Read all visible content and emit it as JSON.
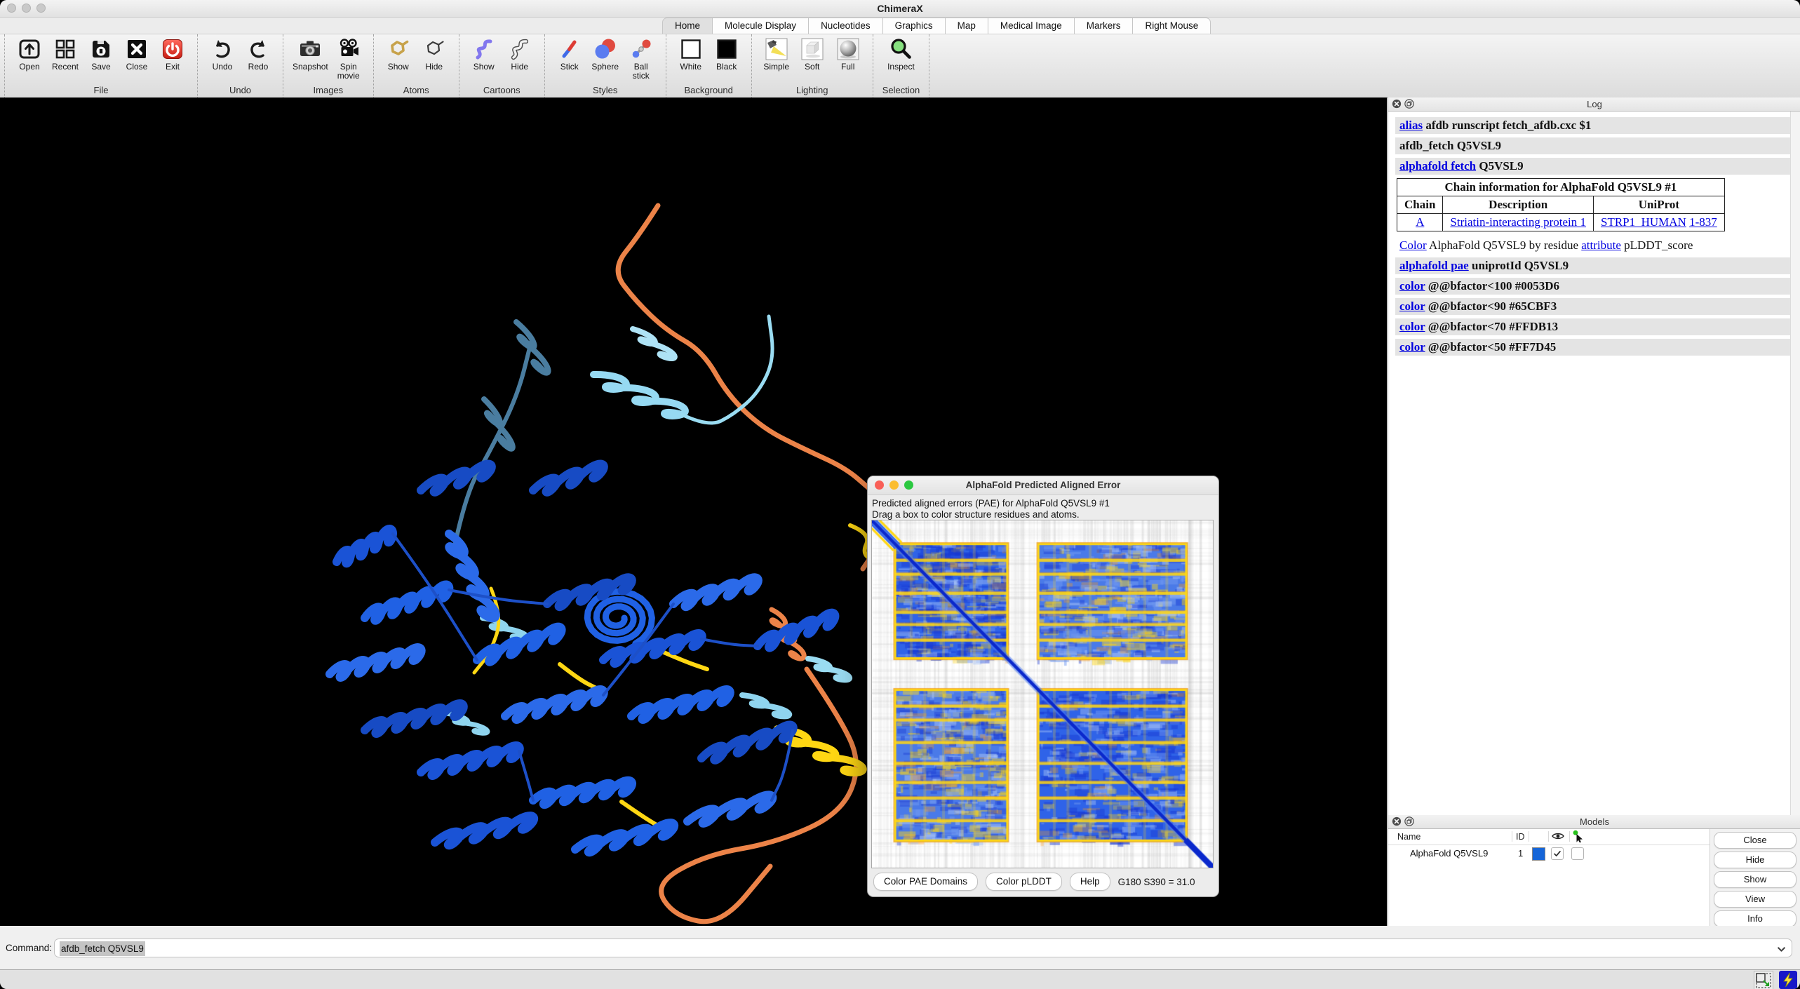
{
  "window": {
    "title": "ChimeraX"
  },
  "tabs": {
    "items": [
      {
        "label": "Home",
        "active": true
      },
      {
        "label": "Molecule Display",
        "active": false
      },
      {
        "label": "Nucleotides",
        "active": false
      },
      {
        "label": "Graphics",
        "active": false
      },
      {
        "label": "Map",
        "active": false
      },
      {
        "label": "Medical Image",
        "active": false
      },
      {
        "label": "Markers",
        "active": false
      },
      {
        "label": "Right Mouse",
        "active": false
      }
    ]
  },
  "toolbar": {
    "groups": [
      {
        "label": "File",
        "items": [
          {
            "label": "Open",
            "icon": "open"
          },
          {
            "label": "Recent",
            "icon": "recent"
          },
          {
            "label": "Save",
            "icon": "save"
          },
          {
            "label": "Close",
            "icon": "close"
          },
          {
            "label": "Exit",
            "icon": "exit"
          }
        ]
      },
      {
        "label": "Undo",
        "items": [
          {
            "label": "Undo",
            "icon": "undo"
          },
          {
            "label": "Redo",
            "icon": "redo"
          }
        ]
      },
      {
        "label": "Images",
        "items": [
          {
            "label": "Snapshot",
            "icon": "snapshot"
          },
          {
            "label": "Spin\nmovie",
            "icon": "spin-movie"
          }
        ]
      },
      {
        "label": "Atoms",
        "items": [
          {
            "label": "Show",
            "icon": "atoms-show"
          },
          {
            "label": "Hide",
            "icon": "atoms-hide"
          }
        ]
      },
      {
        "label": "Cartoons",
        "items": [
          {
            "label": "Show",
            "icon": "cartoons-show"
          },
          {
            "label": "Hide",
            "icon": "cartoons-hide"
          }
        ]
      },
      {
        "label": "Styles",
        "items": [
          {
            "label": "Stick",
            "icon": "stick"
          },
          {
            "label": "Sphere",
            "icon": "sphere"
          },
          {
            "label": "Ball\nstick",
            "icon": "ball-stick"
          }
        ]
      },
      {
        "label": "Background",
        "items": [
          {
            "label": "White",
            "icon": "white"
          },
          {
            "label": "Black",
            "icon": "black"
          }
        ]
      },
      {
        "label": "Lighting",
        "items": [
          {
            "label": "Simple",
            "icon": "simple"
          },
          {
            "label": "Soft",
            "icon": "soft"
          },
          {
            "label": "Full",
            "icon": "full"
          }
        ]
      },
      {
        "label": "Selection",
        "items": [
          {
            "label": "Inspect",
            "icon": "inspect"
          }
        ]
      }
    ]
  },
  "log": {
    "title": "Log",
    "entries": [
      {
        "type": "command",
        "segments": [
          {
            "text": "alias",
            "link": true
          },
          {
            "text": " afdb runscript fetch_afdb.cxc $1"
          }
        ]
      },
      {
        "type": "command",
        "segments": [
          {
            "text": "afdb_fetch Q5VSL9"
          }
        ]
      },
      {
        "type": "command",
        "segments": [
          {
            "text": "alphafold fetch",
            "link": true
          },
          {
            "text": " Q5VSL9"
          }
        ]
      },
      {
        "type": "table",
        "caption": "Chain information for AlphaFold Q5VSL9 #1",
        "headers": [
          "Chain",
          "Description",
          "UniProt"
        ],
        "rows": [
          [
            [
              {
                "text": "A",
                "link": true
              }
            ],
            [
              {
                "text": "Striatin-interacting protein 1",
                "link": true
              }
            ],
            [
              {
                "text": "STRP1_HUMAN",
                "link": true
              },
              {
                "text": " "
              },
              {
                "text": "1-837",
                "link": true
              }
            ]
          ]
        ]
      },
      {
        "type": "info",
        "segments": [
          {
            "text": "Color",
            "link": true
          },
          {
            "text": " AlphaFold Q5VSL9 by residue "
          },
          {
            "text": "attribute",
            "link": true
          },
          {
            "text": " pLDDT_score"
          }
        ]
      },
      {
        "type": "command",
        "segments": [
          {
            "text": "alphafold pae",
            "link": true
          },
          {
            "text": " uniprotId Q5VSL9"
          }
        ]
      },
      {
        "type": "command",
        "segments": [
          {
            "text": "color",
            "link": true
          },
          {
            "text": " @@bfactor<100 #0053D6"
          }
        ]
      },
      {
        "type": "command",
        "segments": [
          {
            "text": "color",
            "link": true
          },
          {
            "text": " @@bfactor<90 #65CBF3"
          }
        ]
      },
      {
        "type": "command",
        "segments": [
          {
            "text": "color",
            "link": true
          },
          {
            "text": " @@bfactor<70 #FFDB13"
          }
        ]
      },
      {
        "type": "command",
        "segments": [
          {
            "text": "color",
            "link": true
          },
          {
            "text": " @@bfactor<50 #FF7D45"
          }
        ]
      }
    ]
  },
  "pae": {
    "title": "AlphaFold Predicted Aligned Error",
    "line1": "Predicted aligned errors (PAE) for AlphaFold Q5VSL9 #1",
    "line2": "Drag a box to color structure residues and atoms.",
    "buttons": [
      "Color PAE Domains",
      "Color pLDDT",
      "Help"
    ],
    "status": "G180 S390 = 31.0"
  },
  "chart_data": {
    "type": "heatmap",
    "title": "Predicted aligned errors (PAE) for AlphaFold Q5VSL9 #1",
    "x_range": [
      1,
      837
    ],
    "y_range": [
      1,
      837
    ],
    "colormap": "low error = dark blue, domain boundaries = yellow/orange, high error = white/gray",
    "diagonal": "dark blue low-error diagonal from top-left to bottom-right",
    "domains_estimated_residues": [
      [
        55,
        335
      ],
      [
        405,
        775
      ]
    ],
    "readout": "G180 S390 = 31.0"
  },
  "models": {
    "title": "Models",
    "columns": {
      "name": "Name",
      "id": "ID"
    },
    "rows": [
      {
        "name": "AlphaFold Q5VSL9",
        "id": "1",
        "color": "#1565d8",
        "shown": true,
        "selected": false
      }
    ],
    "buttons": [
      "Close",
      "Hide",
      "Show",
      "View",
      "Info"
    ]
  },
  "command": {
    "label": "Command:",
    "value": "afdb_fetch Q5VSL9"
  },
  "colors": {
    "plddt_very_high": "#0053D6",
    "plddt_confident": "#65CBF3",
    "plddt_low": "#FFDB13",
    "plddt_very_low": "#FF7D45",
    "model_swatch": "#1565d8",
    "log_link": "#0000e0",
    "traffic_red": "#f95f57",
    "traffic_yellow": "#fbbd2e",
    "traffic_green": "#2bc840"
  },
  "icons": [
    "open",
    "recent",
    "save",
    "close",
    "exit",
    "undo",
    "redo",
    "snapshot",
    "spin-movie",
    "atoms-show",
    "atoms-hide",
    "cartoons-show",
    "cartoons-hide",
    "stick",
    "sphere",
    "ball-stick",
    "white",
    "black",
    "simple",
    "soft",
    "full",
    "inspect",
    "panel-close",
    "panel-float",
    "eye",
    "select-cursor",
    "checkmark",
    "chevron-down",
    "resize",
    "lightning"
  ]
}
